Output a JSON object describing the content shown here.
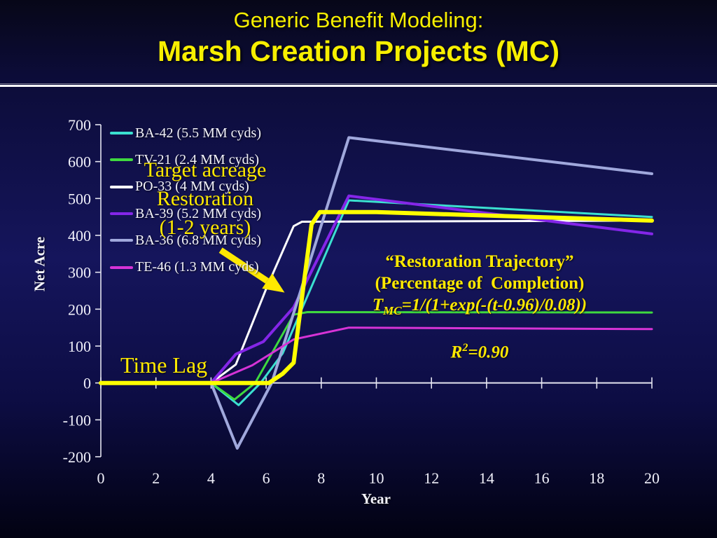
{
  "slide": {
    "title_line1": "Generic Benefit Modeling:",
    "title_line2": "Marsh Creation Projects (MC)",
    "title_color": "#f7ef00"
  },
  "chart_data": {
    "type": "line",
    "title": "",
    "xlabel": "Year",
    "ylabel": "Net Acre",
    "xlim": [
      0,
      20
    ],
    "ylim": [
      -200,
      700
    ],
    "xticks": [
      0,
      2,
      4,
      6,
      8,
      10,
      12,
      14,
      16,
      18,
      20
    ],
    "yticks": [
      700,
      600,
      500,
      400,
      300,
      200,
      100,
      0,
      -100,
      -200
    ],
    "grid": false,
    "legend_position": "top-left",
    "series": [
      {
        "name": "BA-42 (5.5 MM cyds)",
        "color": "#3be0d0",
        "width": 3,
        "in_legend": true,
        "points": [
          [
            0,
            0
          ],
          [
            4,
            0
          ],
          [
            5,
            -60
          ],
          [
            5.8,
            0
          ],
          [
            6.6,
            80
          ],
          [
            9,
            495
          ],
          [
            20,
            450
          ]
        ]
      },
      {
        "name": "TV-21 (2.4 MM cyds)",
        "color": "#3fd93f",
        "width": 3,
        "in_legend": true,
        "points": [
          [
            0,
            0
          ],
          [
            4,
            0
          ],
          [
            4.85,
            -45
          ],
          [
            5.6,
            0
          ],
          [
            7,
            185
          ],
          [
            7.5,
            192
          ],
          [
            20,
            191
          ]
        ]
      },
      {
        "name": "PO-33 (4 MM cyds)",
        "color": "#ffffff",
        "width": 3,
        "in_legend": true,
        "points": [
          [
            0,
            0
          ],
          [
            4,
            0
          ],
          [
            4.9,
            50
          ],
          [
            6,
            255
          ],
          [
            7,
            425
          ],
          [
            7.3,
            437
          ],
          [
            20,
            440
          ]
        ]
      },
      {
        "name": "BA-39 (5.2 MM cyds)",
        "color": "#8426e8",
        "width": 4,
        "in_legend": true,
        "points": [
          [
            0,
            0
          ],
          [
            4,
            0
          ],
          [
            4.9,
            78
          ],
          [
            5.9,
            112
          ],
          [
            7,
            205
          ],
          [
            9,
            507
          ],
          [
            20,
            404
          ]
        ]
      },
      {
        "name": "BA-36 (6.8 MM cyds)",
        "color": "#a0a8dc",
        "width": 4,
        "in_legend": true,
        "points": [
          [
            0,
            0
          ],
          [
            4,
            0
          ],
          [
            4.95,
            -177
          ],
          [
            6.2,
            0
          ],
          [
            9,
            665
          ],
          [
            20,
            567
          ]
        ]
      },
      {
        "name": "TE-46 (1.3 MM cyds)",
        "color": "#d633d6",
        "width": 3,
        "in_legend": true,
        "points": [
          [
            0,
            0
          ],
          [
            4,
            0
          ],
          [
            5.5,
            48
          ],
          [
            7,
            118
          ],
          [
            9,
            150
          ],
          [
            20,
            146
          ]
        ]
      },
      {
        "name": "Restoration Trajectory (model)",
        "color": "#ffff00",
        "width": 6,
        "in_legend": false,
        "points": [
          [
            0,
            0
          ],
          [
            6.1,
            0
          ],
          [
            6.6,
            25
          ],
          [
            7.0,
            55
          ],
          [
            7.35,
            260
          ],
          [
            7.65,
            430
          ],
          [
            7.95,
            463
          ],
          [
            10,
            463
          ],
          [
            20,
            440
          ]
        ]
      }
    ]
  },
  "annotations": {
    "target_acreage": {
      "line1": "Target acreage",
      "line2": "Restoration",
      "line3": "(1-2 years)"
    },
    "time_lag": "Time Lag",
    "trajectory": {
      "line1": "“Restoration Trajectory”",
      "line2": "(Percentage of  Completion)",
      "formula_prefix": "T",
      "formula_sub": "MC",
      "formula_rest": "=1/(1+exp(-(t-0.96)/0.08))",
      "r2_prefix": "R",
      "r2_sup": "2",
      "r2_rest": "=0.90"
    },
    "arrow": {
      "from": [
        4.35,
        360
      ],
      "to": [
        6.67,
        245
      ],
      "color": "#ffe900"
    }
  }
}
